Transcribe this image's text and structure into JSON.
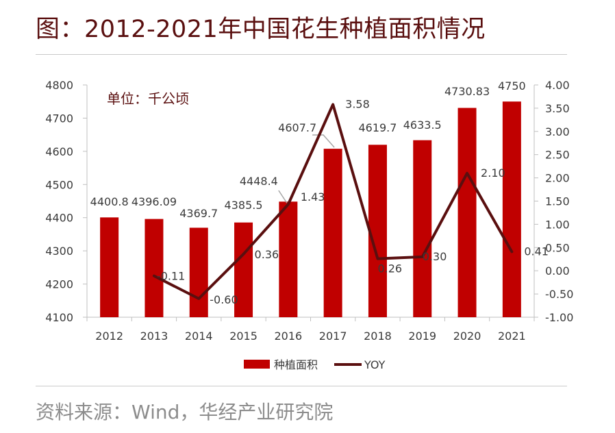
{
  "title": "图：2012-2021年中国花生种植面积情况",
  "source": "资料来源：Wind，华经产业研究院",
  "colors": {
    "bar": "#c00000",
    "line": "#5a0f0f",
    "title": "#5a0f0f"
  },
  "chart_data": {
    "type": "bar",
    "unit_label": "单位：千公顷",
    "categories": [
      "2012",
      "2013",
      "2014",
      "2015",
      "2016",
      "2017",
      "2018",
      "2019",
      "2020",
      "2021"
    ],
    "series": [
      {
        "name": "种植面积",
        "kind": "bar",
        "axis": "left",
        "values": [
          4400.8,
          4396.09,
          4369.7,
          4385.5,
          4448.4,
          4607.7,
          4619.7,
          4633.5,
          4730.83,
          4750
        ],
        "labels": [
          "4400.8",
          "4396.09",
          "4369.7",
          "4385.5",
          "4448.4",
          "4607.7",
          "4619.7",
          "4633.5",
          "4730.83",
          "4750"
        ]
      },
      {
        "name": "YOY",
        "kind": "line",
        "axis": "right",
        "values": [
          null,
          -0.11,
          -0.6,
          0.36,
          1.43,
          3.58,
          0.26,
          0.3,
          2.1,
          0.41
        ],
        "labels": [
          null,
          "-0.11",
          "-0.60",
          "0.36",
          "1.43",
          "3.58",
          "0.26",
          "0.30",
          "2.10",
          "0.41"
        ]
      }
    ],
    "y_left": {
      "min": 4100,
      "max": 4800,
      "ticks": [
        "4100",
        "4200",
        "4300",
        "4400",
        "4500",
        "4600",
        "4700",
        "4800"
      ],
      "tick_values": [
        4100,
        4200,
        4300,
        4400,
        4500,
        4600,
        4700,
        4800
      ]
    },
    "y_right": {
      "min": -1,
      "max": 4,
      "ticks": [
        "-1.00",
        "-0.50",
        "0.00",
        "0.50",
        "1.00",
        "1.50",
        "2.00",
        "2.50",
        "3.00",
        "3.50",
        "4.00"
      ],
      "tick_values": [
        -1,
        -0.5,
        0,
        0.5,
        1,
        1.5,
        2,
        2.5,
        3,
        3.5,
        4
      ]
    },
    "legend": [
      "种植面积",
      "YOY"
    ],
    "legend_position": "bottom"
  }
}
